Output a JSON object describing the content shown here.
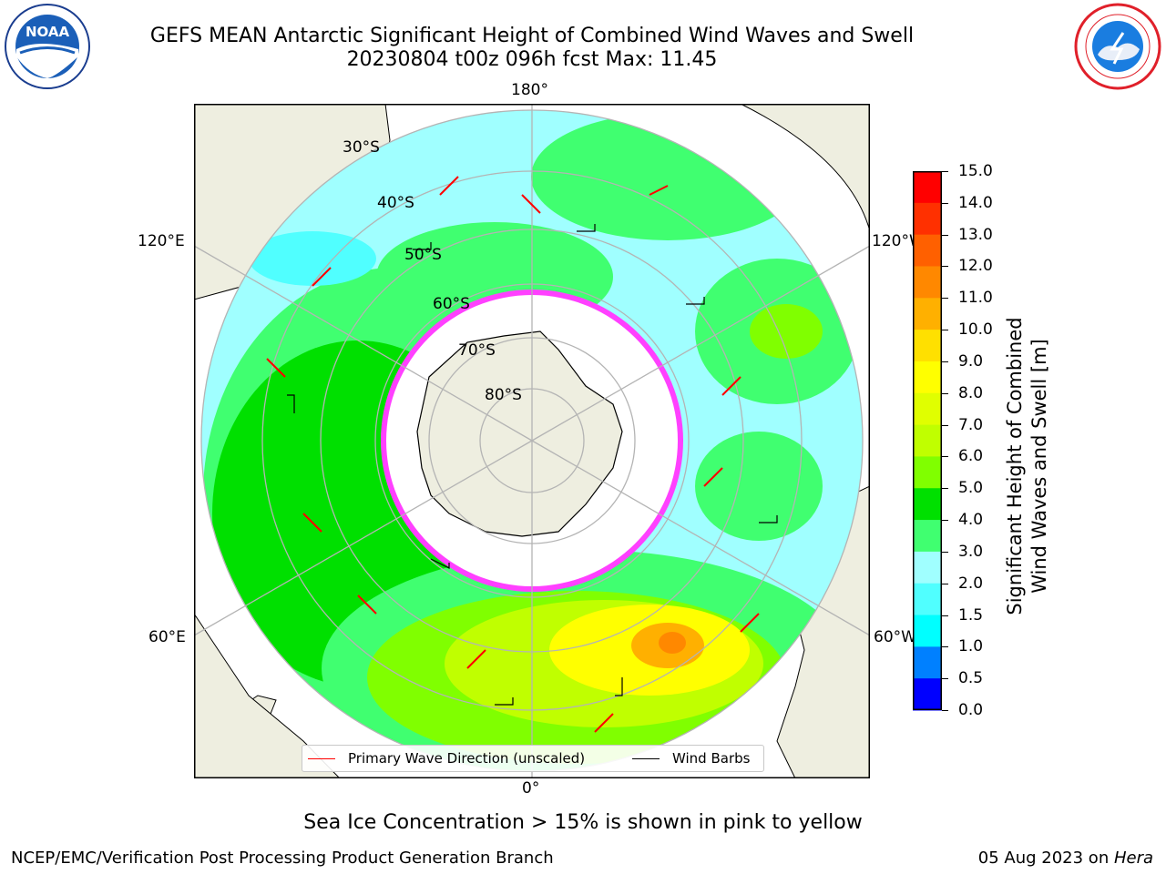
{
  "title": {
    "line1": "GEFS MEAN Antarctic Significant Height of Combined Wind Waves and Swell",
    "line2": "20230804 t00z 096h fcst   Max: 11.45"
  },
  "logos": {
    "left": "noaa-logo",
    "right": "nws-logo",
    "left_text": "NOAA"
  },
  "map": {
    "projection": "south-polar-stereographic",
    "longitude_labels": {
      "top": "180°",
      "bottom": "0°",
      "left_upper": "120°E",
      "left_lower": "60°E",
      "right_upper": "120°W",
      "right_lower": "60°W"
    },
    "latitude_labels": [
      "30°S",
      "40°S",
      "50°S",
      "60°S",
      "70°S",
      "80°S"
    ],
    "legend": {
      "wave": "Primary Wave Direction (unscaled)",
      "wind": "Wind Barbs"
    },
    "colors": {
      "land": "#eeeee0",
      "ice": "#ffffff",
      "grid": "#b4b4b4",
      "wave_arrow": "#ff0000",
      "wind_barb": "#000000",
      "sea_ice": "#ff40ff"
    }
  },
  "colorbar": {
    "ticks": [
      "15.0",
      "14.0",
      "13.0",
      "12.0",
      "11.0",
      "10.0",
      "9.0",
      "8.0",
      "7.0",
      "6.0",
      "5.0",
      "4.0",
      "3.0",
      "2.0",
      "1.5",
      "1.0",
      "0.5",
      "0.0"
    ],
    "colors": [
      "#ff0000",
      "#ff3000",
      "#ff6000",
      "#ff8800",
      "#ffb000",
      "#ffe000",
      "#ffff00",
      "#e0ff00",
      "#c0ff00",
      "#80ff00",
      "#00e000",
      "#40ff70",
      "#a0ffff",
      "#50ffff",
      "#00ffff",
      "#0080ff",
      "#0000ff"
    ],
    "label_line1": "Significant Height of Combined",
    "label_line2": "Wind Waves and Swell [m]"
  },
  "note": "Sea Ice Concentration > 15% is shown in pink to yellow",
  "footer": {
    "left": "NCEP/EMC/Verification Post Processing Product Generation Branch",
    "right_date": "05 Aug 2023 on ",
    "right_host": "Hera"
  }
}
